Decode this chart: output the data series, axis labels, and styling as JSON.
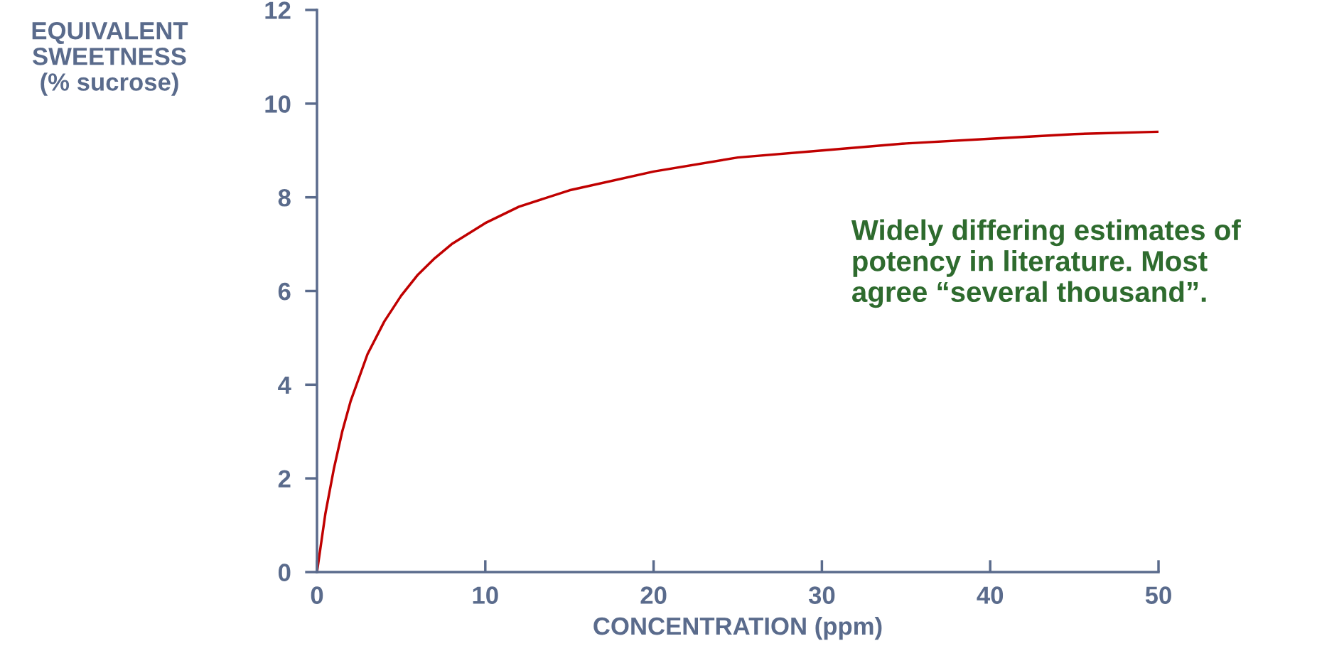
{
  "chart_data": {
    "type": "line",
    "xlabel": "CONCENTRATION (ppm)",
    "ylabel": "EQUIVALENT\nSWEETNESS\n(% sucrose)",
    "x": [
      0,
      0.5,
      1,
      1.5,
      2,
      3,
      4,
      5,
      6,
      7,
      8,
      10,
      12,
      15,
      20,
      25,
      30,
      35,
      40,
      45,
      50
    ],
    "series": [
      {
        "color": "#c00000",
        "values": [
          0,
          1.25,
          2.2,
          3.0,
          3.65,
          4.65,
          5.35,
          5.9,
          6.35,
          6.7,
          7.0,
          7.45,
          7.8,
          8.15,
          8.55,
          8.85,
          9.0,
          9.15,
          9.25,
          9.35,
          9.4
        ]
      }
    ],
    "xlim": [
      0,
      50
    ],
    "xticks": [
      0,
      10,
      20,
      30,
      40,
      50
    ],
    "ylim": [
      0,
      12
    ],
    "yticks": [
      0,
      2,
      4,
      6,
      8,
      10,
      12
    ],
    "grid": false,
    "legend": false,
    "marker": "none",
    "line_style": "solid",
    "annotations": [
      "Widely differing estimates of\npotency in literature. Most\nagree “several thousand”."
    ]
  }
}
